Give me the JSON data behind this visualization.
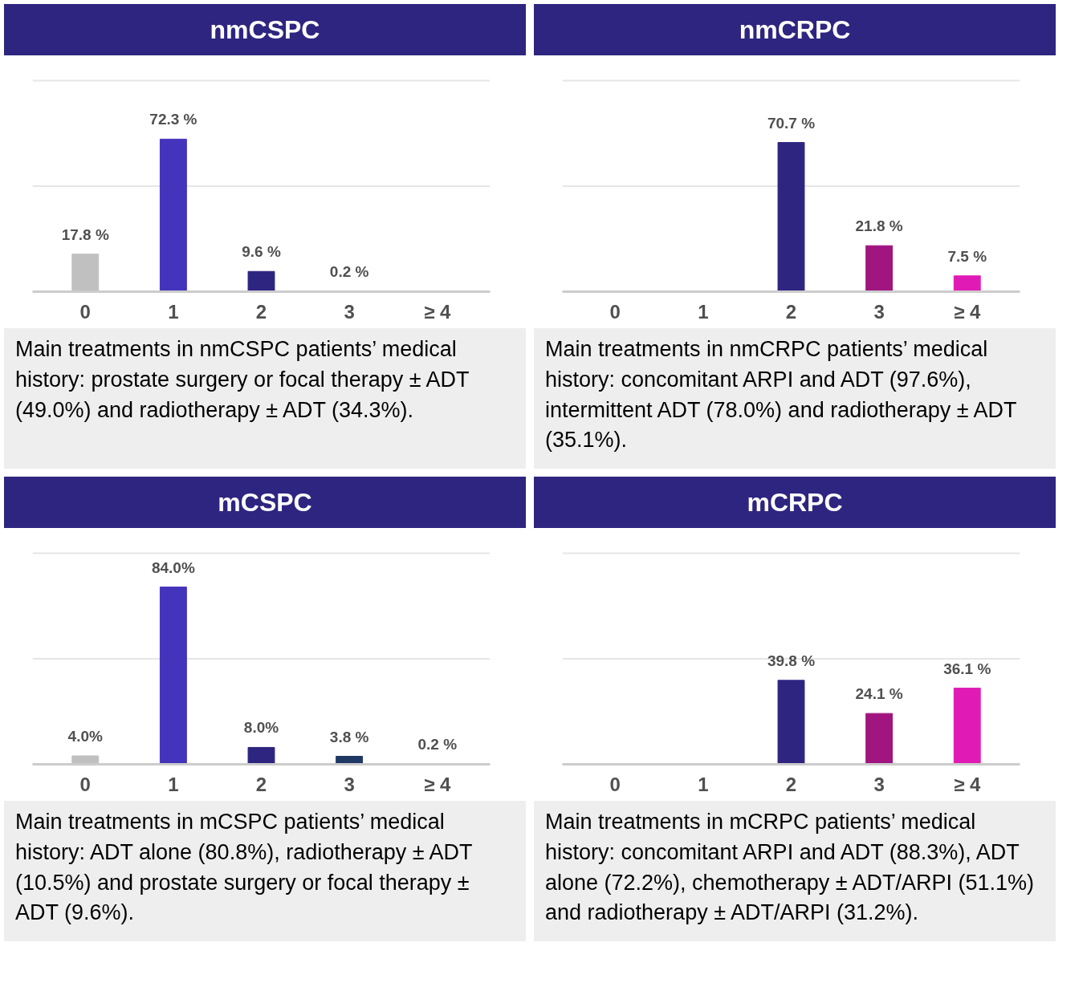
{
  "chart_data": [
    {
      "type": "bar",
      "title": "nmCSPC",
      "categories": [
        "0",
        "1",
        "2",
        "3",
        "≥ 4"
      ],
      "values": [
        17.8,
        72.3,
        9.6,
        0.2,
        null
      ],
      "colors": [
        "#c0c0c0",
        "#4433bb",
        "#2e2580",
        "#1f3864",
        "#e01bb5"
      ],
      "value_labels": [
        "17.8 %",
        "72.3 %",
        "9.6 %",
        "0.2 %",
        null
      ],
      "ref_lines": [
        {
          "axis": "y",
          "value": 50,
          "color": "#e6e6e6"
        },
        {
          "axis": "y",
          "value": 100,
          "color": "#e6e6e6"
        }
      ],
      "tick_labels": "x",
      "annotations": [
        "Main treatments in nmCSPC patients’ medical history: prostate surgery or focal therapy ± ADT (49.0%) and radiotherapy ± ADT (34.3%)."
      ]
    },
    {
      "type": "bar",
      "title": "nmCRPC",
      "categories": [
        "0",
        "1",
        "2",
        "3",
        "≥ 4"
      ],
      "values": [
        null,
        null,
        70.7,
        21.8,
        7.5
      ],
      "colors": [
        "#c0c0c0",
        "#4433bb",
        "#2e2580",
        "#a0157f",
        "#e01bb5"
      ],
      "value_labels": [
        null,
        null,
        "70.7 %",
        "21.8 %",
        "7.5 %"
      ],
      "ref_lines": [
        {
          "axis": "y",
          "value": 50,
          "color": "#e6e6e6"
        },
        {
          "axis": "y",
          "value": 100,
          "color": "#e6e6e6"
        }
      ],
      "tick_labels": "x",
      "annotations": [
        "Main treatments in nmCRPC patients’ medical history: concomitant ARPI and ADT (97.6%), intermittent ADT (78.0%) and radiotherapy ± ADT (35.1%)."
      ]
    },
    {
      "type": "bar",
      "title": "mCSPC",
      "categories": [
        "0",
        "1",
        "2",
        "3",
        "≥ 4"
      ],
      "values": [
        4.0,
        84.0,
        8.0,
        3.8,
        0.2
      ],
      "colors": [
        "#c0c0c0",
        "#4433bb",
        "#2e2580",
        "#1f3864",
        "#e01bb5"
      ],
      "value_labels": [
        "4.0%",
        "84.0%",
        "8.0%",
        "3.8 %",
        "0.2 %"
      ],
      "ref_lines": [
        {
          "axis": "y",
          "value": 50,
          "color": "#e6e6e6"
        },
        {
          "axis": "y",
          "value": 100,
          "color": "#e6e6e6"
        }
      ],
      "tick_labels": "x",
      "annotations": [
        "Main treatments in mCSPC patients’ medical history: ADT alone (80.8%), radiotherapy ± ADT (10.5%) and prostate surgery or focal therapy ± ADT (9.6%)."
      ]
    },
    {
      "type": "bar",
      "title": "mCRPC",
      "categories": [
        "0",
        "1",
        "2",
        "3",
        "≥ 4"
      ],
      "values": [
        null,
        null,
        39.8,
        24.1,
        36.1
      ],
      "colors": [
        "#c0c0c0",
        "#4433bb",
        "#2e2580",
        "#a0157f",
        "#e01bb5"
      ],
      "value_labels": [
        null,
        null,
        "39.8 %",
        "24.1 %",
        "36.1 %"
      ],
      "ref_lines": [
        {
          "axis": "y",
          "value": 50,
          "color": "#e6e6e6"
        },
        {
          "axis": "y",
          "value": 100,
          "color": "#e6e6e6"
        }
      ],
      "tick_labels": "x",
      "annotations": [
        "Main treatments in mCRPC patients’ medical history: concomitant ARPI and ADT (88.3%), ADT alone (72.2%), chemotherapy ± ADT/ARPI (51.1%) and radiotherapy ± ADT/ARPI (31.2%)."
      ]
    }
  ]
}
